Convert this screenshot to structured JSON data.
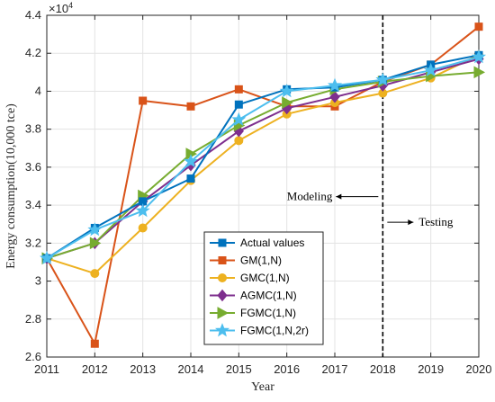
{
  "chart_data": {
    "type": "line",
    "xlabel": "Year",
    "ylabel": "Energy consumption(10,000 tce)",
    "y_exponent_label": "×10",
    "y_exponent_power": "4",
    "xlim": [
      2011,
      2020
    ],
    "ylim": [
      2.6,
      4.4
    ],
    "x": [
      2011,
      2012,
      2013,
      2014,
      2015,
      2016,
      2017,
      2018,
      2019,
      2020
    ],
    "x_tick_labels": [
      "2011",
      "2012",
      "2013",
      "2014",
      "2015",
      "2016",
      "2017",
      "2018",
      "2019",
      "2020"
    ],
    "y_ticks": [
      2.6,
      2.8,
      3.0,
      3.2,
      3.4,
      3.6,
      3.8,
      4.0,
      4.2,
      4.4
    ],
    "y_tick_labels": [
      "2.6",
      "2.8",
      "3",
      "3.2",
      "3.4",
      "3.6",
      "3.8",
      "4",
      "4.2",
      "4.4"
    ],
    "grid": true,
    "legend_position": "bottom-center",
    "series": [
      {
        "name": "Actual values",
        "color": "#0072BD",
        "marker": "square",
        "values": [
          3.12,
          3.28,
          3.42,
          3.54,
          3.93,
          4.01,
          4.02,
          4.06,
          4.14,
          4.19
        ]
      },
      {
        "name": "GM(1,N)",
        "color": "#D95319",
        "marker": "square",
        "values": [
          3.12,
          2.67,
          3.95,
          3.92,
          4.01,
          3.92,
          3.92,
          4.05,
          4.14,
          4.34
        ]
      },
      {
        "name": "GMC(1,N)",
        "color": "#EDB120",
        "marker": "circle",
        "values": [
          3.12,
          3.04,
          3.28,
          3.53,
          3.74,
          3.88,
          3.94,
          3.99,
          4.07,
          4.19
        ]
      },
      {
        "name": "AGMC(1,N)",
        "color": "#7E2F8E",
        "marker": "diamond",
        "values": [
          3.12,
          3.2,
          3.42,
          3.61,
          3.79,
          3.91,
          3.97,
          4.03,
          4.1,
          4.17
        ]
      },
      {
        "name": "FGMC(1,N)",
        "color": "#77AC30",
        "marker": "triangle-right",
        "values": [
          3.12,
          3.2,
          3.45,
          3.67,
          3.82,
          3.94,
          4.01,
          4.05,
          4.08,
          4.1
        ]
      },
      {
        "name": "FGMC(1,N,2r)",
        "color": "#4DBEEE",
        "marker": "star",
        "values": [
          3.12,
          3.27,
          3.37,
          3.63,
          3.85,
          4.0,
          4.03,
          4.06,
          4.11,
          4.18
        ]
      }
    ],
    "divider_x": 2018,
    "annotations": {
      "modeling": "Modeling",
      "testing": "Testing"
    }
  }
}
